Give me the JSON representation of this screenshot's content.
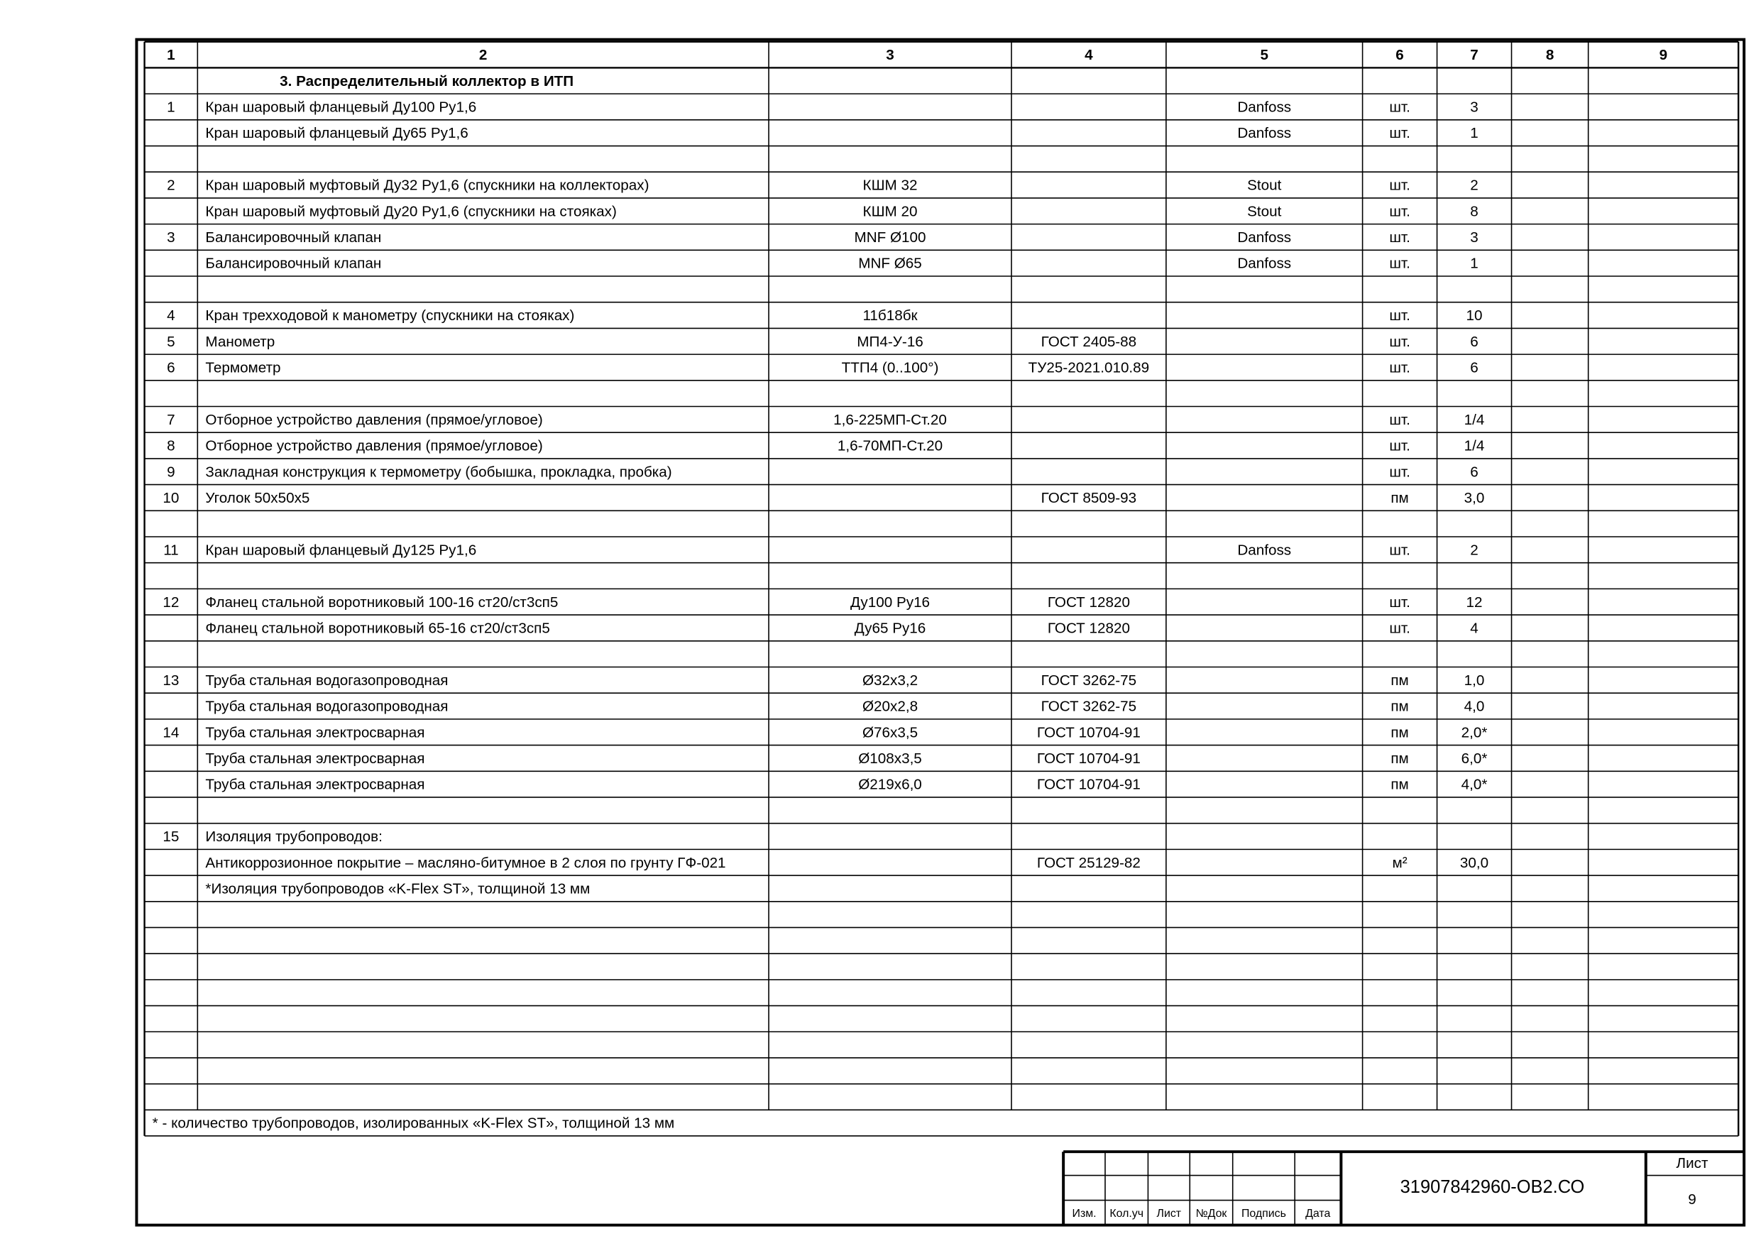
{
  "table": {
    "header": [
      "1",
      "2",
      "3",
      "4",
      "5",
      "6",
      "7",
      "8",
      "9"
    ],
    "section_title": "3. Распределительный коллектор в ИТП",
    "rows": [
      [
        "1",
        "Кран шаровый фланцевый Ду100 Ру1,6",
        null,
        null,
        "Danfoss",
        "шт.",
        "3"
      ],
      [
        null,
        "Кран шаровый фланцевый Ду65 Ру1,6",
        null,
        null,
        "Danfoss",
        "шт.",
        "1"
      ],
      [],
      [
        "2",
        "Кран шаровый муфтовый Ду32 Ру1,6 (спускники на коллекторах)",
        "КШМ 32",
        null,
        "Stout",
        "шт.",
        "2"
      ],
      [
        null,
        "Кран шаровый муфтовый Ду20 Ру1,6 (спускники на стояках)",
        "КШМ 20",
        null,
        "Stout",
        "шт.",
        "8"
      ],
      [
        "3",
        "Балансировочный клапан",
        "MNF Ø100",
        null,
        "Danfoss",
        "шт.",
        "3"
      ],
      [
        null,
        "Балансировочный клапан",
        "MNF Ø65",
        null,
        "Danfoss",
        "шт.",
        "1"
      ],
      [],
      [
        "4",
        "Кран трехходовой к манометру (спускники на стояках)",
        "11б18бк",
        null,
        null,
        "шт.",
        "10"
      ],
      [
        "5",
        "Манометр",
        "МП4-У-16",
        "ГОСТ 2405-88",
        null,
        "шт.",
        "6"
      ],
      [
        "6",
        "Термометр",
        "ТТП4 (0..100°)",
        "ТУ25-2021.010.89",
        null,
        "шт.",
        "6"
      ],
      [],
      [
        "7",
        "Отборное устройство давления (прямое/угловое)",
        "1,6-225МП-Ст.20",
        null,
        null,
        "шт.",
        "1/4"
      ],
      [
        "8",
        "Отборное устройство давления (прямое/угловое)",
        "1,6-70МП-Ст.20",
        null,
        null,
        "шт.",
        "1/4"
      ],
      [
        "9",
        "Закладная конструкция к термометру (бобышка, прокладка, пробка)",
        null,
        null,
        null,
        "шт.",
        "6"
      ],
      [
        "10",
        "Уголок 50х50х5",
        null,
        "ГОСТ 8509-93",
        null,
        "пм",
        "3,0"
      ],
      [],
      [
        "11",
        "Кран шаровый фланцевый Ду125 Ру1,6",
        null,
        null,
        "Danfoss",
        "шт.",
        "2"
      ],
      [],
      [
        "12",
        "Фланец стальной воротниковый 100-16 ст20/ст3сп5",
        "Ду100 Ру16",
        "ГОСТ 12820",
        null,
        "шт.",
        "12"
      ],
      [
        null,
        "Фланец стальной воротниковый 65-16 ст20/ст3сп5",
        "Ду65 Ру16",
        "ГОСТ 12820",
        null,
        "шт.",
        "4"
      ],
      [],
      [
        "13",
        "Труба стальная водогазопроводная",
        "Ø32х3,2",
        "ГОСТ 3262-75",
        null,
        "пм",
        "1,0"
      ],
      [
        null,
        "Труба стальная водогазопроводная",
        "Ø20х2,8",
        "ГОСТ 3262-75",
        null,
        "пм",
        "4,0"
      ],
      [
        "14",
        "Труба стальная электросварная",
        "Ø76х3,5",
        "ГОСТ 10704-91",
        null,
        "пм",
        "2,0*"
      ],
      [
        null,
        "Труба стальная электросварная",
        "Ø108х3,5",
        "ГОСТ 10704-91",
        null,
        "пм",
        "6,0*"
      ],
      [
        null,
        "Труба стальная электросварная",
        "Ø219х6,0",
        "ГОСТ 10704-91",
        null,
        "пм",
        "4,0*"
      ],
      [],
      [
        "15",
        "Изоляция трубопроводов:"
      ],
      [
        null,
        "Антикоррозионное покрытие – масляно-битумное в 2 слоя по грунту ГФ-021",
        null,
        "ГОСТ 25129-82",
        null,
        "м²",
        "30,0"
      ],
      [
        null,
        "*Изоляция трубопроводов «K-Flex ST», толщиной 13 мм"
      ],
      [],
      [],
      [],
      [],
      [],
      [],
      [],
      []
    ],
    "footnote": "* - количество трубопроводов, изолированных «K-Flex ST», толщиной 13 мм"
  },
  "title_block": {
    "labels": [
      "Изм.",
      "Кол.уч",
      "Лист",
      "№Док",
      "Подпись",
      "Дата"
    ],
    "doc_number": "31907842960-ОВ2.СО",
    "sheet_label": "Лист",
    "sheet_number": "9"
  }
}
